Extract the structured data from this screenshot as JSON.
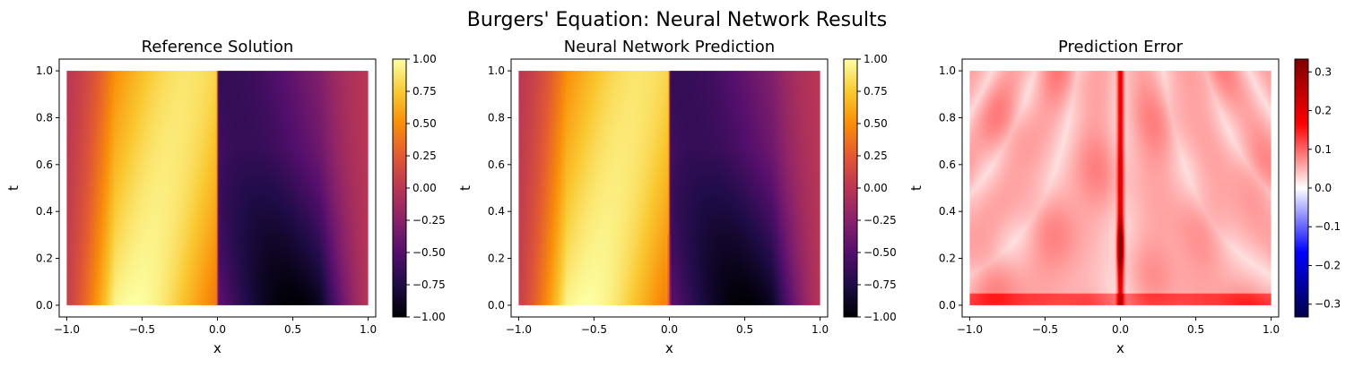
{
  "figure": {
    "suptitle": "Burgers' Equation: Neural Network Results"
  },
  "chart_data": [
    {
      "type": "heatmap",
      "title": "Reference Solution",
      "xlabel": "x",
      "ylabel": "t",
      "xlim": [
        -1.05,
        1.05
      ],
      "ylim": [
        -0.05,
        1.05
      ],
      "x_ticks": [
        "−1.0",
        "−0.5",
        "0.0",
        "0.5",
        "1.0"
      ],
      "x_tick_values": [
        -1.0,
        -0.5,
        0.0,
        0.5,
        1.0
      ],
      "y_ticks": [
        "0.0",
        "0.2",
        "0.4",
        "0.6",
        "0.8",
        "1.0"
      ],
      "y_tick_values": [
        0.0,
        0.2,
        0.4,
        0.6,
        0.8,
        1.0
      ],
      "colormap": "inferno",
      "colorbar": {
        "range": [
          -1.0,
          1.0
        ],
        "ticks": [
          "−1.00",
          "−0.75",
          "−0.50",
          "−0.25",
          "0.00",
          "0.25",
          "0.50",
          "0.75",
          "1.00"
        ],
        "tick_values": [
          -1.0,
          -0.75,
          -0.5,
          -0.25,
          0.0,
          0.25,
          0.5,
          0.75,
          1.0
        ],
        "stops": [
          "#000004",
          "#1f0c48",
          "#550f6d",
          "#88226a",
          "#ba3655",
          "#e35933",
          "#f98e09",
          "#f9c932",
          "#fcffa4"
        ]
      },
      "field": "burgers_reference",
      "grid": false
    },
    {
      "type": "heatmap",
      "title": "Neural Network Prediction",
      "xlabel": "x",
      "ylabel": "t",
      "xlim": [
        -1.05,
        1.05
      ],
      "ylim": [
        -0.05,
        1.05
      ],
      "x_ticks": [
        "−1.0",
        "−0.5",
        "0.0",
        "0.5",
        "1.0"
      ],
      "x_tick_values": [
        -1.0,
        -0.5,
        0.0,
        0.5,
        1.0
      ],
      "y_ticks": [
        "0.0",
        "0.2",
        "0.4",
        "0.6",
        "0.8",
        "1.0"
      ],
      "y_tick_values": [
        0.0,
        0.2,
        0.4,
        0.6,
        0.8,
        1.0
      ],
      "colormap": "inferno",
      "colorbar": {
        "range": [
          -1.0,
          1.0
        ],
        "ticks": [
          "−1.00",
          "−0.75",
          "−0.50",
          "−0.25",
          "0.00",
          "0.25",
          "0.50",
          "0.75",
          "1.00"
        ],
        "tick_values": [
          -1.0,
          -0.75,
          -0.5,
          -0.25,
          0.0,
          0.25,
          0.5,
          0.75,
          1.0
        ],
        "stops": [
          "#000004",
          "#1f0c48",
          "#550f6d",
          "#88226a",
          "#ba3655",
          "#e35933",
          "#f98e09",
          "#f9c932",
          "#fcffa4"
        ]
      },
      "field": "burgers_prediction",
      "grid": false
    },
    {
      "type": "heatmap",
      "title": "Prediction Error",
      "xlabel": "x",
      "ylabel": "t",
      "xlim": [
        -1.05,
        1.05
      ],
      "ylim": [
        -0.05,
        1.05
      ],
      "x_ticks": [
        "−1.0",
        "−0.5",
        "0.0",
        "0.5",
        "1.0"
      ],
      "x_tick_values": [
        -1.0,
        -0.5,
        0.0,
        0.5,
        1.0
      ],
      "y_ticks": [
        "0.0",
        "0.2",
        "0.4",
        "0.6",
        "0.8",
        "1.0"
      ],
      "y_tick_values": [
        0.0,
        0.2,
        0.4,
        0.6,
        0.8,
        1.0
      ],
      "colormap": "seismic",
      "colorbar": {
        "range": [
          -0.333,
          0.333
        ],
        "ticks": [
          "−0.3",
          "−0.2",
          "−0.1",
          "0.0",
          "0.1",
          "0.2",
          "0.3"
        ],
        "tick_values": [
          -0.3,
          -0.2,
          -0.1,
          0.0,
          0.1,
          0.2,
          0.3
        ],
        "stops": [
          "#00004c",
          "#0000ff",
          "#ffffff",
          "#ff0000",
          "#800000"
        ]
      },
      "field": "burgers_error",
      "grid": false
    }
  ]
}
